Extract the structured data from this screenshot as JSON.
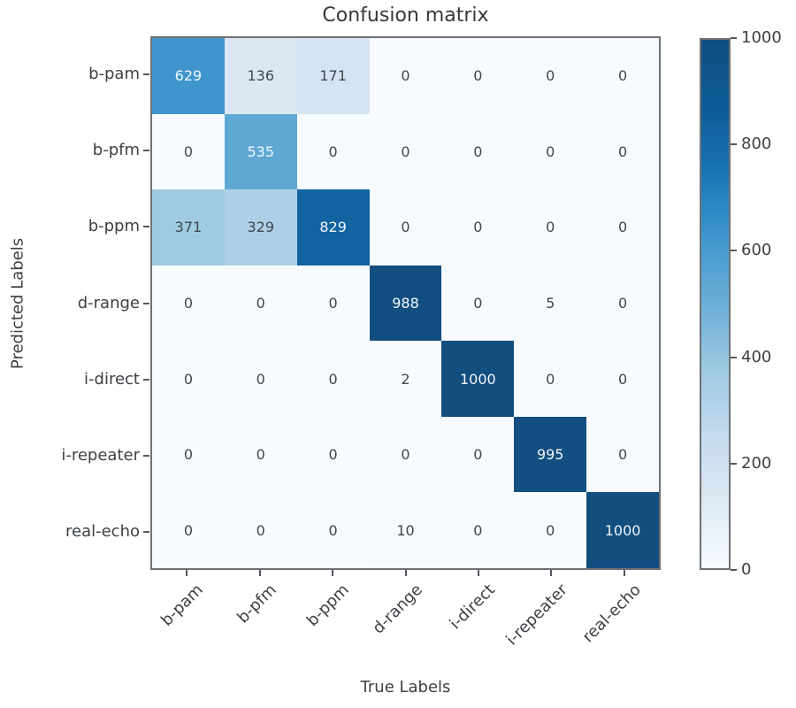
{
  "chart_data": {
    "type": "heatmap",
    "title": "Confusion matrix",
    "xlabel": "True Labels",
    "ylabel": "Predicted Labels",
    "categories": [
      "b-pam",
      "b-pfm",
      "b-ppm",
      "d-range",
      "i-direct",
      "i-repeater",
      "real-echo"
    ],
    "predicted_labels": [
      "b-pam",
      "b-pfm",
      "b-ppm",
      "d-range",
      "i-direct",
      "i-repeater",
      "real-echo"
    ],
    "matrix": [
      [
        629,
        136,
        171,
        0,
        0,
        0,
        0
      ],
      [
        0,
        535,
        0,
        0,
        0,
        0,
        0
      ],
      [
        371,
        329,
        829,
        0,
        0,
        0,
        0
      ],
      [
        0,
        0,
        0,
        988,
        0,
        5,
        0
      ],
      [
        0,
        0,
        0,
        2,
        1000,
        0,
        0
      ],
      [
        0,
        0,
        0,
        0,
        0,
        995,
        0
      ],
      [
        0,
        0,
        0,
        10,
        0,
        0,
        1000
      ]
    ],
    "vmin": 0,
    "vmax": 1000,
    "grid": false,
    "legend_position": "right-colorbar",
    "colorbar": {
      "ticks": [
        0,
        200,
        400,
        600,
        800,
        1000
      ]
    },
    "colormap": {
      "name": "Blues",
      "stops": [
        [
          0.0,
          "#f7fbff"
        ],
        [
          0.125,
          "#dde9f3"
        ],
        [
          0.25,
          "#c6dbef"
        ],
        [
          0.375,
          "#9ecae1"
        ],
        [
          0.5,
          "#6caed6"
        ],
        [
          0.625,
          "#3f97cd"
        ],
        [
          0.75,
          "#1b74b4"
        ],
        [
          0.875,
          "#0d5a95"
        ],
        [
          1.0,
          "#124e7e"
        ]
      ]
    },
    "value_text_threshold": 500
  },
  "colors": {
    "cell_text_dark": "#3f464c",
    "cell_text_light": "#f2f6fa",
    "frame": "#6e7276",
    "tick": "#55585c",
    "label_text": "#3c4044",
    "title_text": "#35393d",
    "background": "#ffffff"
  }
}
